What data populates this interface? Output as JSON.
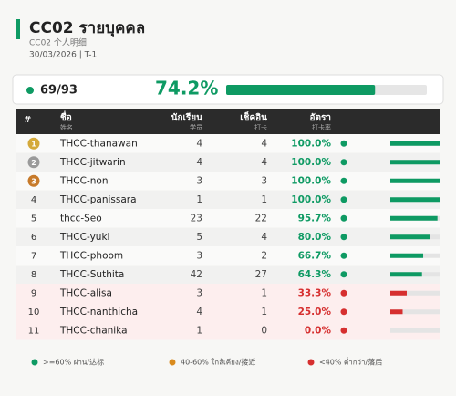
{
  "header": {
    "title": "CC02  รายบุคคล",
    "subtitle": "CC02  个人明细",
    "date": "30/03/2026  |  T-1"
  },
  "summary": {
    "checked": "69/93",
    "percent": 74.2,
    "percent_label": "74.2%",
    "color": "#0e9a63"
  },
  "table": {
    "columns": [
      {
        "label": "#"
      },
      {
        "label": "ชื่อ",
        "sub": "姓名"
      },
      {
        "label": "นักเรียน",
        "sub": "学员"
      },
      {
        "label": "เช็คอิน",
        "sub": "打卡"
      },
      {
        "label": "อัตรา",
        "sub": "打卡率"
      }
    ],
    "rows": [
      {
        "rank": 1,
        "name": "THCC-thanawan",
        "students": 4,
        "checkin": 4,
        "rate": 100.0,
        "rate_label": "100.0%",
        "color": "#0e9a63"
      },
      {
        "rank": 2,
        "name": "THCC-jitwarin",
        "students": 4,
        "checkin": 4,
        "rate": 100.0,
        "rate_label": "100.0%",
        "color": "#0e9a63"
      },
      {
        "rank": 3,
        "name": "THCC-non",
        "students": 3,
        "checkin": 3,
        "rate": 100.0,
        "rate_label": "100.0%",
        "color": "#0e9a63"
      },
      {
        "rank": 4,
        "name": "THCC-panissara",
        "students": 1,
        "checkin": 1,
        "rate": 100.0,
        "rate_label": "100.0%",
        "color": "#0e9a63"
      },
      {
        "rank": 5,
        "name": "thcc-Seo",
        "students": 23,
        "checkin": 22,
        "rate": 95.7,
        "rate_label": "95.7%",
        "color": "#0e9a63"
      },
      {
        "rank": 6,
        "name": "THCC-yuki",
        "students": 5,
        "checkin": 4,
        "rate": 80.0,
        "rate_label": "80.0%",
        "color": "#0e9a63"
      },
      {
        "rank": 7,
        "name": "THCC-phoom",
        "students": 3,
        "checkin": 2,
        "rate": 66.7,
        "rate_label": "66.7%",
        "color": "#0e9a63"
      },
      {
        "rank": 8,
        "name": "THCC-Suthita",
        "students": 42,
        "checkin": 27,
        "rate": 64.3,
        "rate_label": "64.3%",
        "color": "#0e9a63"
      },
      {
        "rank": 9,
        "name": "THCC-alisa",
        "students": 3,
        "checkin": 1,
        "rate": 33.3,
        "rate_label": "33.3%",
        "color": "#d62f2f"
      },
      {
        "rank": 10,
        "name": "THCC-nanthicha",
        "students": 4,
        "checkin": 1,
        "rate": 25.0,
        "rate_label": "25.0%",
        "color": "#d62f2f"
      },
      {
        "rank": 11,
        "name": "THCC-chanika",
        "students": 1,
        "checkin": 0,
        "rate": 0.0,
        "rate_label": "0.0%",
        "color": "#d62f2f"
      }
    ]
  },
  "legend": [
    {
      "label": ">=60% ผ่าน/达标",
      "color": "#0e9a63"
    },
    {
      "label": "40-60% ใกล้เคียง/接近",
      "color": "#d98a1c"
    },
    {
      "label": "<40% ต่ำกว่า/落后",
      "color": "#d62f2f"
    }
  ]
}
